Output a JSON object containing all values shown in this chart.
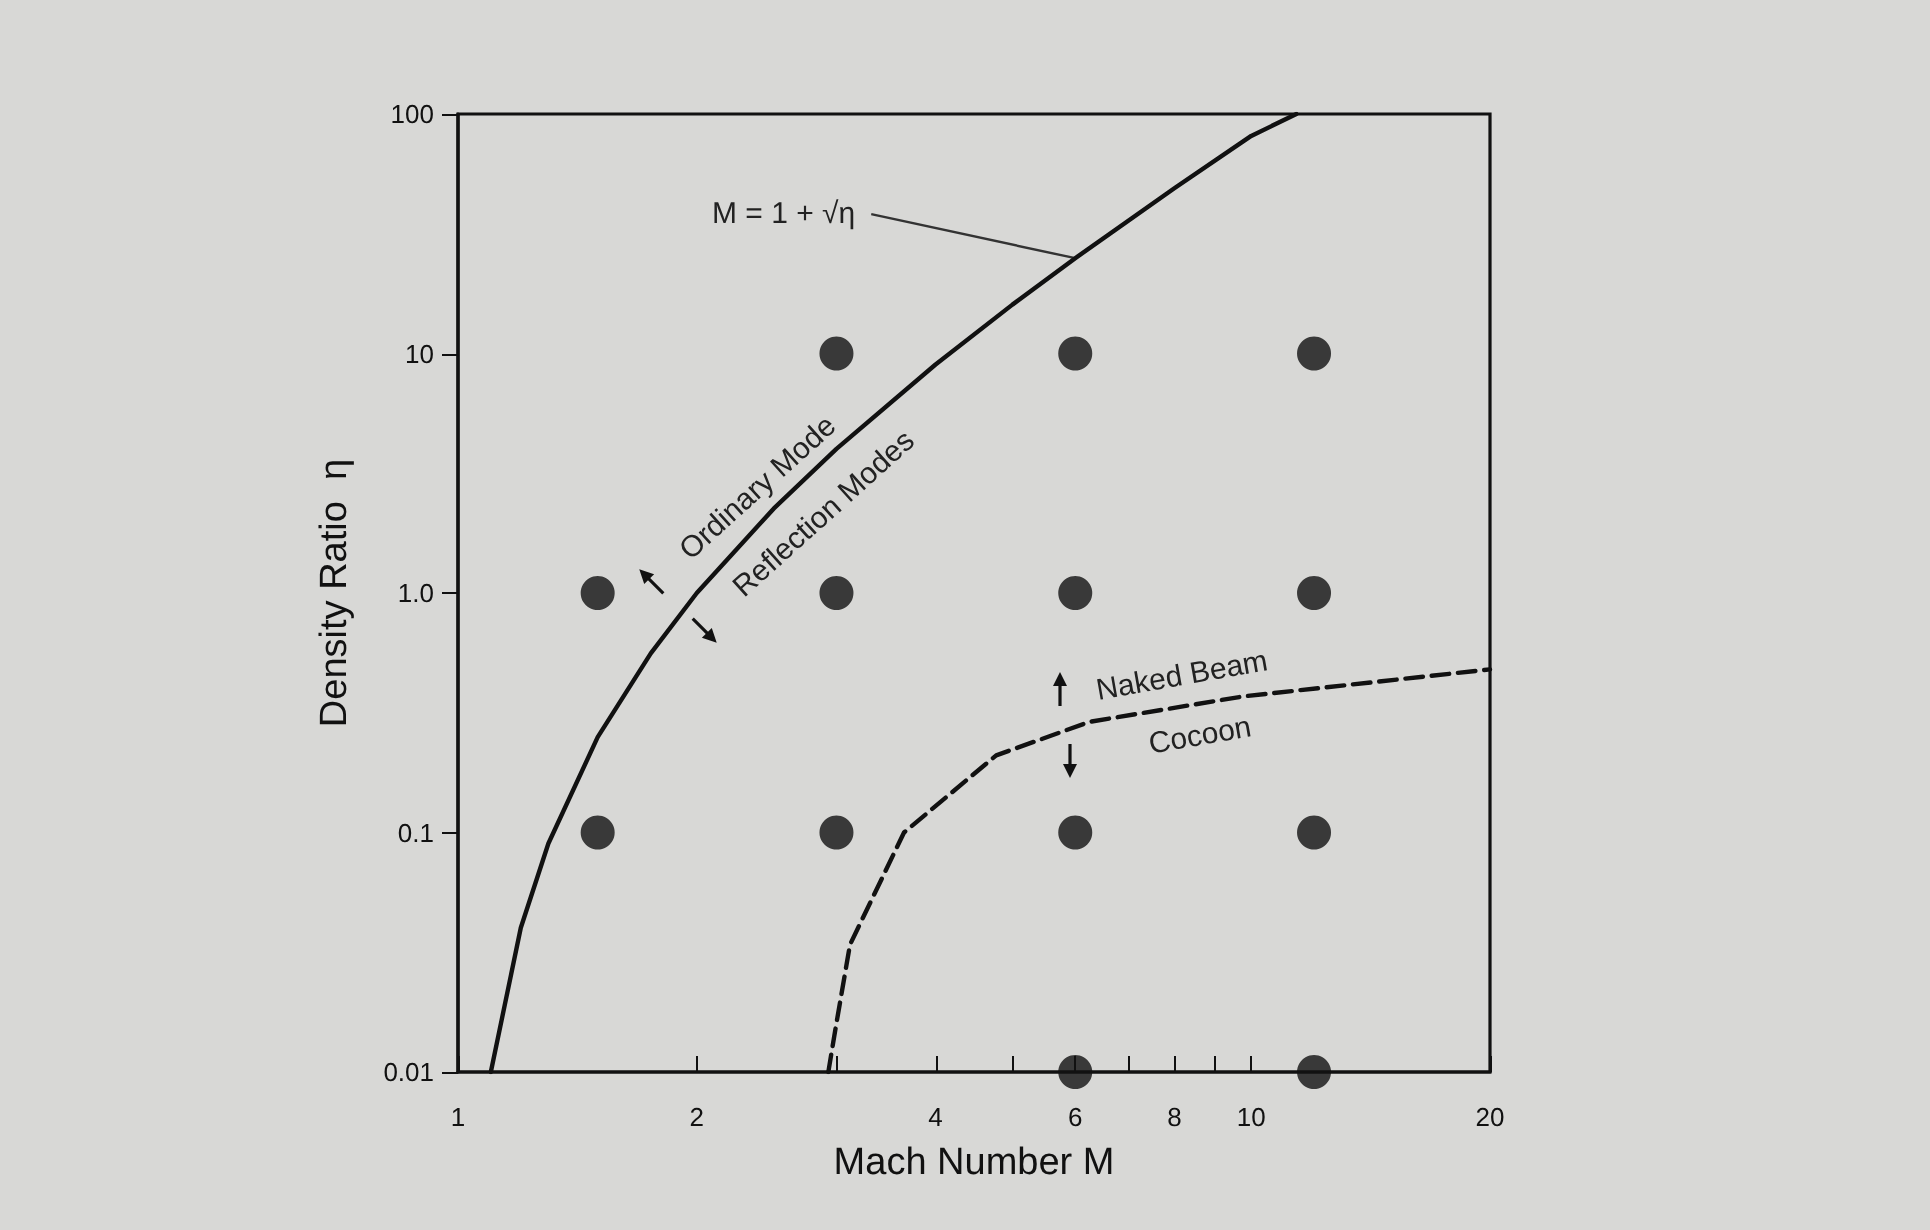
{
  "chart_data": {
    "type": "scatter",
    "xlabel": "Mach Number M",
    "ylabel": "Density Ratio  η",
    "log": "xy",
    "xlim": [
      1,
      20
    ],
    "ylim": [
      0.01,
      100
    ],
    "xticks": [
      1,
      2,
      {
        "value": 3,
        "label": null
      },
      4,
      {
        "value": 5,
        "label": null
      },
      6,
      {
        "value": 7,
        "label": null
      },
      8,
      {
        "value": 9,
        "label": null
      },
      10,
      20
    ],
    "yticks": [
      0.01,
      0.1,
      {
        "value": 1,
        "label": "1.0"
      },
      10,
      100
    ],
    "grid": false,
    "series": [
      {
        "marker": "circle",
        "color": "#111111",
        "x": [
          3,
          6,
          12,
          1.5,
          3,
          6,
          12,
          1.5,
          3,
          6,
          12,
          6,
          12
        ],
        "values": [
          10,
          10,
          10,
          1,
          1,
          1,
          1,
          0.1,
          0.1,
          0.1,
          0.1,
          0.01,
          0.01
        ]
      },
      {
        "type": "line",
        "marker": "none",
        "line_style": "solid",
        "color": "#111111",
        "x": [
          1.1,
          1.2,
          1.3,
          1.5,
          1.75,
          2,
          2.5,
          3,
          4,
          5,
          6,
          8,
          10,
          11.4
        ],
        "values": [
          0.01,
          0.04,
          0.09,
          0.25,
          0.56,
          1,
          2.25,
          4,
          9,
          16,
          25,
          49,
          81,
          100
        ]
      },
      {
        "type": "line",
        "marker": "none",
        "line_style": "dashed",
        "color": "#111111",
        "x": [
          2.93,
          2.99,
          3.12,
          3.65,
          4.77,
          6.26,
          9.77,
          20
        ],
        "values": [
          0.01,
          0.015,
          0.034,
          0.1,
          0.21,
          0.29,
          0.37,
          0.48
        ]
      }
    ],
    "annotations": [
      {
        "text": "M = 1 + √η",
        "x": 6,
        "y": 25
      },
      "Ordinary Mode",
      "Reflection Modes",
      "Naked Beam",
      "Cocoon"
    ]
  }
}
